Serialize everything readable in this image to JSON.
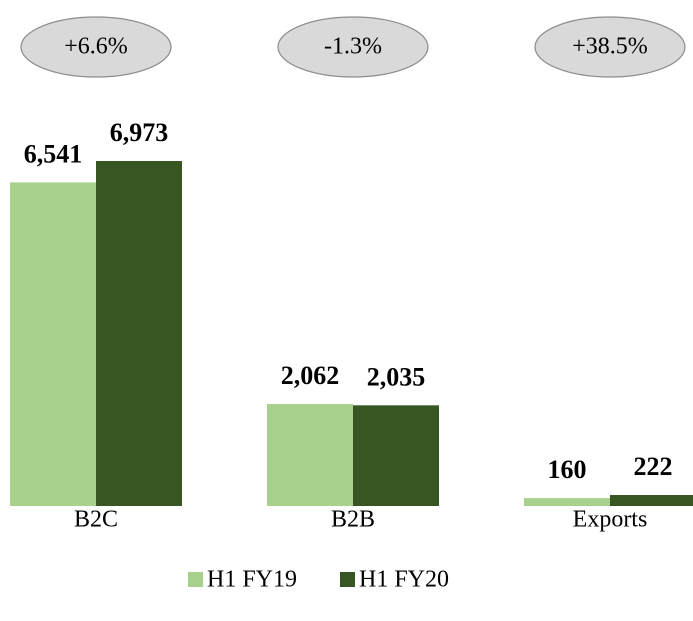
{
  "chart_data": {
    "type": "bar",
    "categories": [
      "B2C",
      "B2B",
      "Exports"
    ],
    "series": [
      {
        "name": "H1 FY19",
        "color": "#a9d18e",
        "values": [
          6541,
          2062,
          160
        ],
        "value_labels": [
          "6,541",
          "2,062",
          "160"
        ]
      },
      {
        "name": "H1 FY20",
        "color": "#375623",
        "values": [
          6973,
          2035,
          222
        ],
        "value_labels": [
          "6,973",
          "2,035",
          "222"
        ]
      }
    ],
    "annotations": [
      "+6.6%",
      "-1.3%",
      "+38.5%"
    ],
    "legend": "bottom"
  }
}
